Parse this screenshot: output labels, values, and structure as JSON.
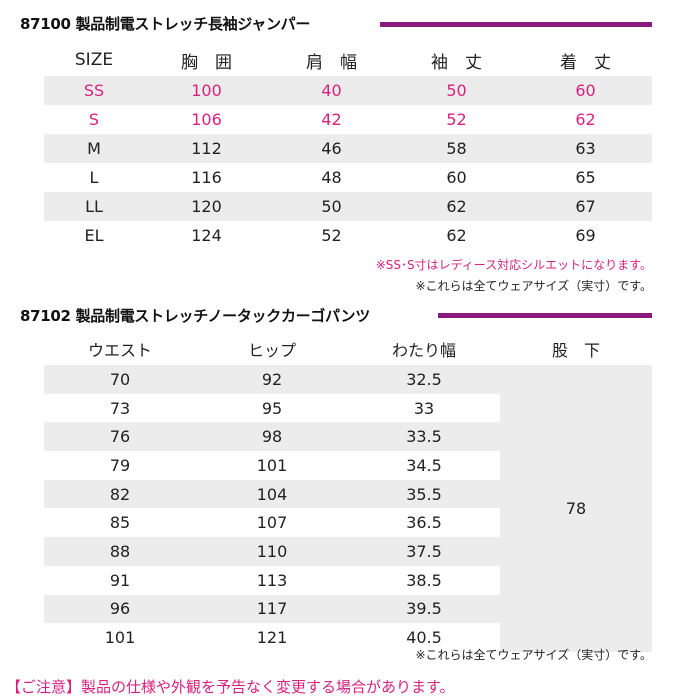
{
  "jacket": {
    "title": "87100 製品制電ストレッチ長袖ジャンパー",
    "headers": [
      "SIZE",
      "胸　囲",
      "肩　幅",
      "袖　丈",
      "着　丈"
    ],
    "rows": [
      [
        "SS",
        "100",
        "40",
        "50",
        "60"
      ],
      [
        "S",
        "106",
        "42",
        "52",
        "62"
      ],
      [
        "M",
        "112",
        "46",
        "58",
        "63"
      ],
      [
        "L",
        "116",
        "48",
        "60",
        "65"
      ],
      [
        "LL",
        "120",
        "50",
        "62",
        "67"
      ],
      [
        "EL",
        "124",
        "52",
        "62",
        "69"
      ]
    ],
    "note_ladies": "※SS･S寸はレディース対応シルエットになります。",
    "note_actual": "※これらは全てウェアサイズ（実寸）です。"
  },
  "pants": {
    "title": "87102 製品制電ストレッチノータックカーゴパンツ",
    "headers": [
      "ウエスト",
      "ヒップ",
      "わたり幅",
      "股　下"
    ],
    "rows": [
      [
        "70",
        "92",
        "32.5"
      ],
      [
        "73",
        "95",
        "33"
      ],
      [
        "76",
        "98",
        "33.5"
      ],
      [
        "79",
        "101",
        "34.5"
      ],
      [
        "82",
        "104",
        "35.5"
      ],
      [
        "85",
        "107",
        "36.5"
      ],
      [
        "88",
        "110",
        "37.5"
      ],
      [
        "91",
        "113",
        "38.5"
      ],
      [
        "96",
        "117",
        "39.5"
      ],
      [
        "101",
        "121",
        "40.5"
      ]
    ],
    "inseam": "78",
    "note_actual": "※これらは全てウェアサイズ（実寸）です。"
  },
  "caution": "【ご注意】製品の仕様や外観を予告なく変更する場合があります。",
  "colors": {
    "accent": "#8a1a7e",
    "pink": "#d8217f",
    "shade": "#ececec"
  }
}
